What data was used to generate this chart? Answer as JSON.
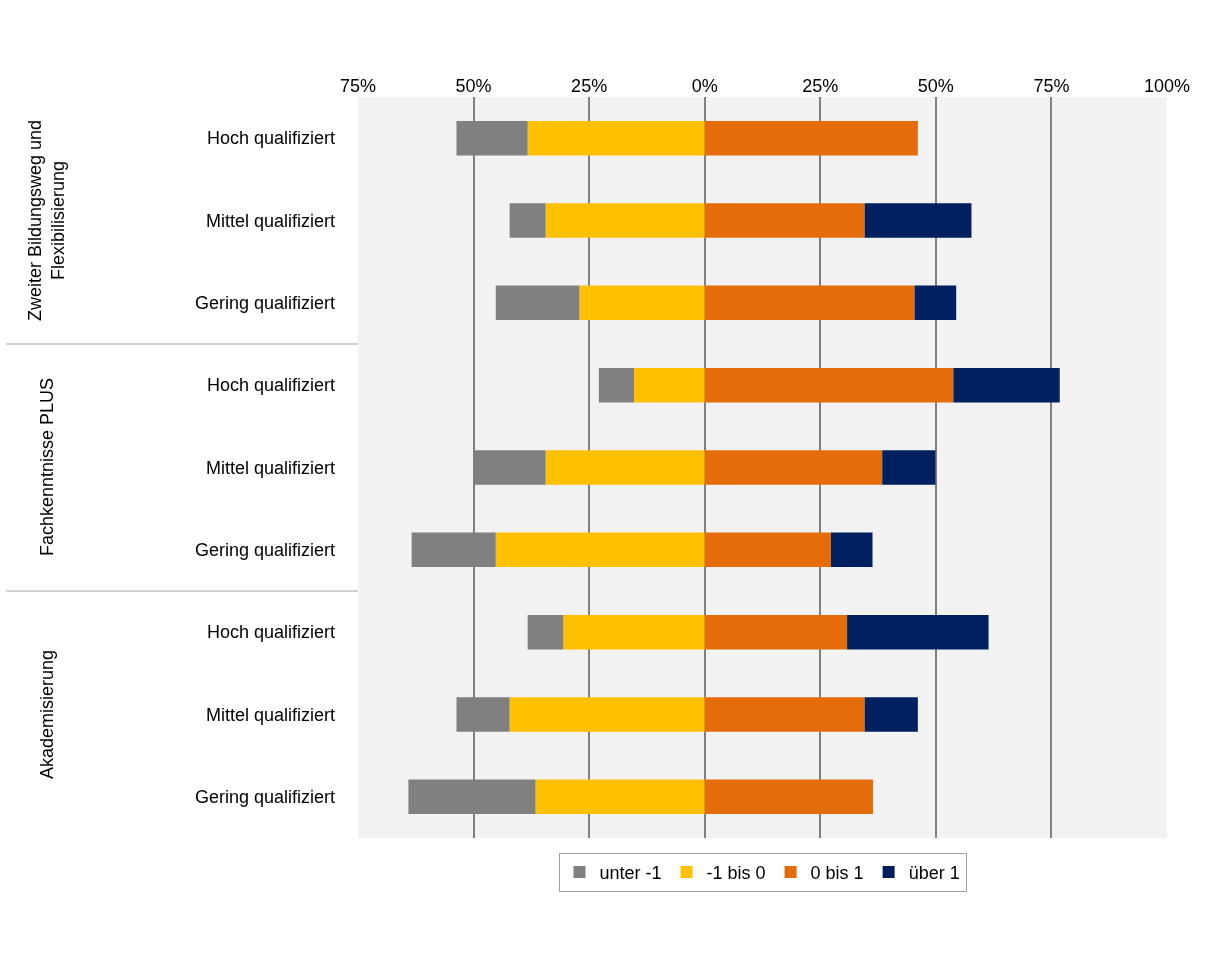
{
  "chart_data": {
    "type": "bar",
    "orientation": "horizontal",
    "stacked": true,
    "categories": [
      "Hoch qualifiziert",
      "Mittel qualifiziert",
      "Gering qualifiziert",
      "Hoch qualifiziert",
      "Mittel qualifiziert",
      "Gering qualifiziert",
      "Hoch qualifiziert",
      "Mittel qualifiziert",
      "Gering qualifiziert"
    ],
    "annotations": [
      "Zweiter Bildungsweg und Flexibilisierung",
      "Fachkenntnisse PLUS",
      "Akademisierung"
    ],
    "series": [
      {
        "name": "-1 bis 0",
        "color": "#ffc000",
        "values": [
          -38.3,
          -34.4,
          -27.1,
          -15.3,
          -34.4,
          -45.2,
          -30.6,
          -42.2,
          -36.6
        ]
      },
      {
        "name": "unter -1",
        "color": "#808080",
        "values": [
          -15.4,
          -7.8,
          -18.1,
          -7.6,
          -15.4,
          -18.2,
          -7.7,
          -11.5,
          -27.5
        ]
      },
      {
        "name": "0 bis 1",
        "color": "#e46c0a",
        "values": [
          46.1,
          34.6,
          45.4,
          53.8,
          38.4,
          27.3,
          30.8,
          34.6,
          36.4
        ]
      },
      {
        "name": "über 1",
        "color": "#002060",
        "values": [
          0,
          23.1,
          9.0,
          23.0,
          11.5,
          9.0,
          30.6,
          11.5,
          0
        ]
      }
    ],
    "xlim": [
      -75,
      100
    ],
    "xticks": [
      {
        "value": -75,
        "label": "75%"
      },
      {
        "value": -50,
        "label": "50%"
      },
      {
        "value": -25,
        "label": "25%"
      },
      {
        "value": 0,
        "label": "0%"
      },
      {
        "value": 25,
        "label": "25%"
      },
      {
        "value": 50,
        "label": "50%"
      },
      {
        "value": 75,
        "label": "75%"
      },
      {
        "value": 100,
        "label": "100%"
      }
    ],
    "grid": "x",
    "legend": "bottom"
  }
}
